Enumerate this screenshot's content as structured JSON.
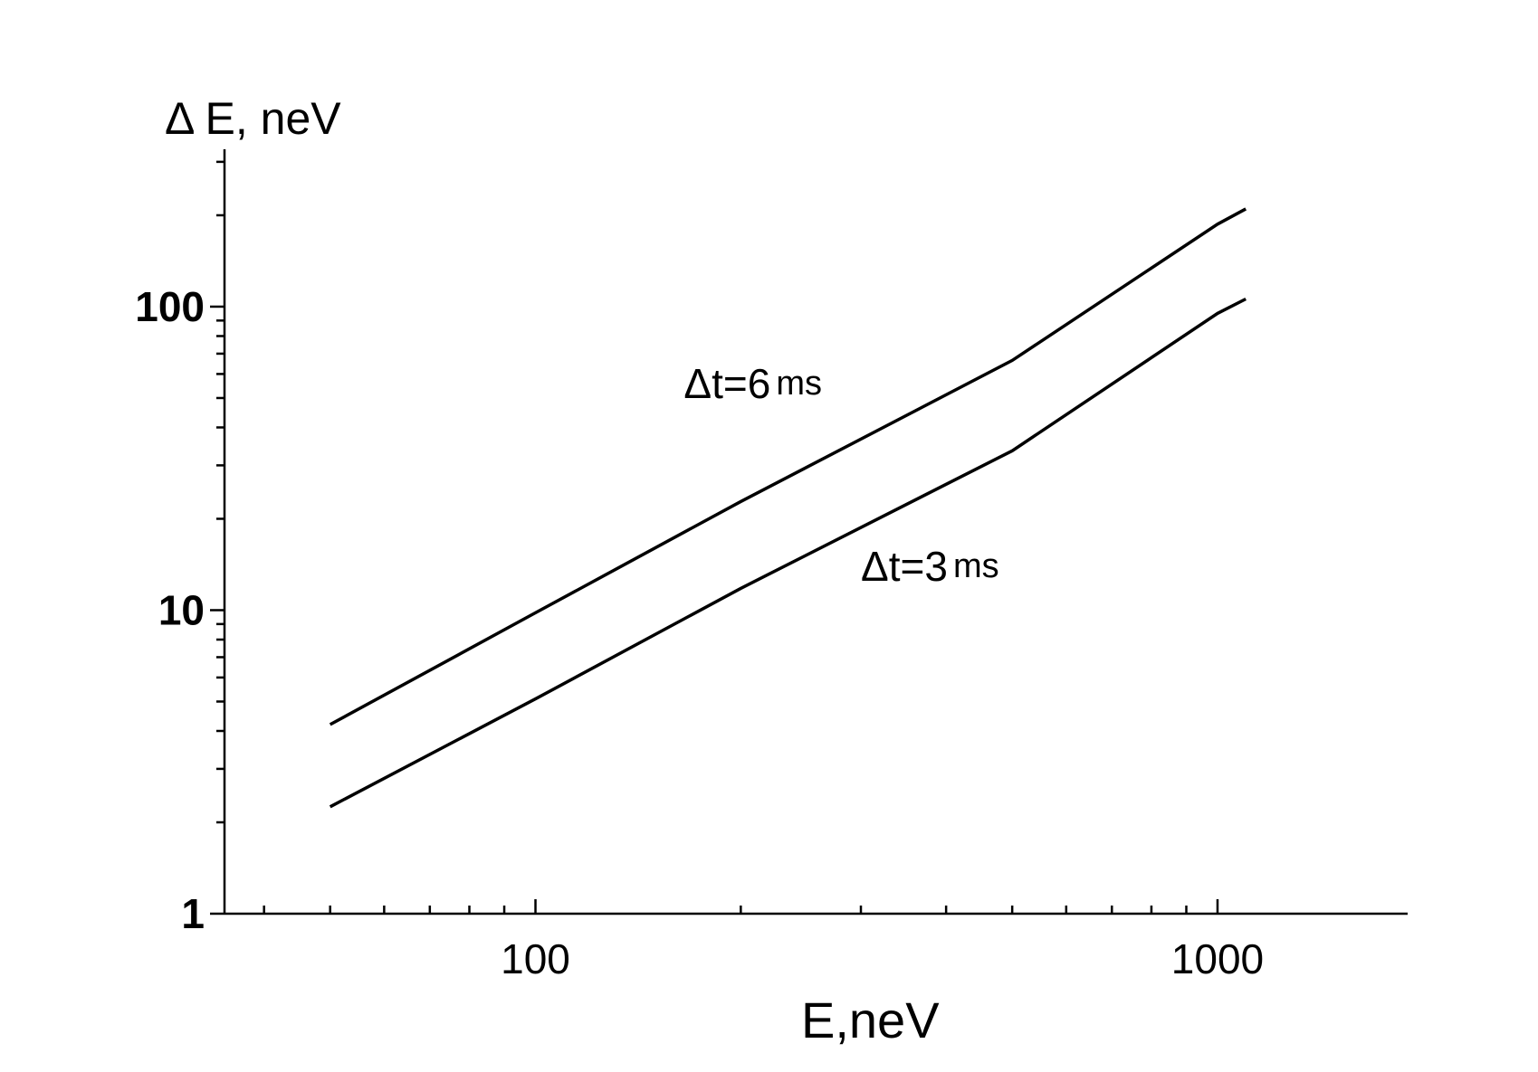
{
  "chart_data": {
    "type": "line",
    "title": "",
    "xlabel": "E,neV",
    "ylabel": "Δ E, neV",
    "xscale": "log",
    "yscale": "log",
    "xlim": [
      35,
      1900
    ],
    "ylim": [
      1,
      330
    ],
    "grid": false,
    "x_tick_labels": [
      "100",
      "1000"
    ],
    "x_tick_values": [
      100,
      1000
    ],
    "y_tick_labels": [
      "1",
      "10",
      "100"
    ],
    "y_tick_values": [
      1,
      10,
      100
    ],
    "series": [
      {
        "x": [
          50,
          100,
          200,
          500,
          1000,
          1100
        ],
        "y": [
          4.2,
          9.8,
          22.8,
          66.5,
          187,
          210
        ]
      },
      {
        "x": [
          50,
          100,
          200,
          500,
          1000,
          1100
        ],
        "y": [
          2.25,
          5.1,
          11.8,
          33.5,
          95,
          106
        ]
      }
    ],
    "annotations": [
      {
        "main": "Δt=6",
        "unit": "ms",
        "x": 165,
        "y": 50
      },
      {
        "main": "Δt=3",
        "unit": "ms",
        "x": 300,
        "y": 12.5
      }
    ]
  }
}
